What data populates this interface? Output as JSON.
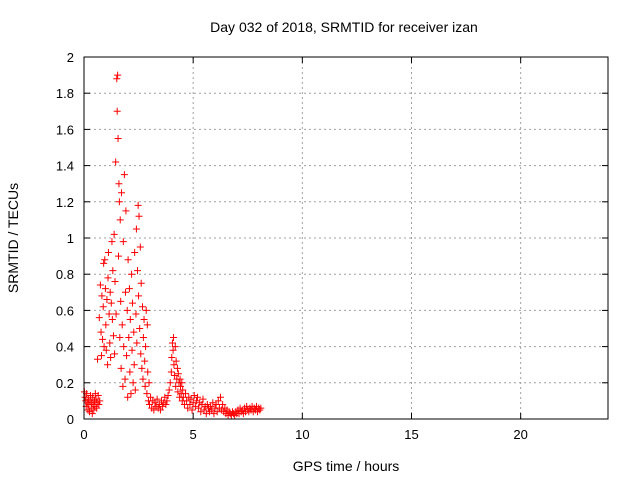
{
  "chart_data": {
    "type": "scatter",
    "title": "Day 032 of 2018, SRMTID for receiver izan",
    "xlabel": "GPS time / hours",
    "ylabel": "SRMTID / TECUs",
    "xlim": [
      0,
      24
    ],
    "ylim": [
      0,
      2
    ],
    "x_ticks": [
      "0",
      "5",
      "10",
      "15",
      "20"
    ],
    "y_ticks": [
      "0",
      "0.2",
      "0.4",
      "0.6",
      "0.8",
      "1",
      "1.2",
      "1.4",
      "1.6",
      "1.8",
      "2"
    ],
    "x_tick_values": [
      0,
      5,
      10,
      15,
      20
    ],
    "y_tick_values": [
      0,
      0.2,
      0.4,
      0.6,
      0.8,
      1.0,
      1.2,
      1.4,
      1.6,
      1.8,
      2.0
    ],
    "grid": true,
    "marker": "+",
    "color": "#ff0000",
    "series": [
      {
        "name": "SRMTID",
        "points": [
          [
            0.02,
            0.15
          ],
          [
            0.05,
            0.12
          ],
          [
            0.08,
            0.1
          ],
          [
            0.1,
            0.07
          ],
          [
            0.12,
            0.14
          ],
          [
            0.15,
            0.09
          ],
          [
            0.18,
            0.05
          ],
          [
            0.2,
            0.11
          ],
          [
            0.22,
            0.08
          ],
          [
            0.25,
            0.04
          ],
          [
            0.28,
            0.1
          ],
          [
            0.3,
            0.13
          ],
          [
            0.33,
            0.06
          ],
          [
            0.35,
            0.09
          ],
          [
            0.38,
            0.03
          ],
          [
            0.4,
            0.12
          ],
          [
            0.42,
            0.08
          ],
          [
            0.45,
            0.05
          ],
          [
            0.48,
            0.1
          ],
          [
            0.5,
            0.07
          ],
          [
            0.52,
            0.14
          ],
          [
            0.55,
            0.11
          ],
          [
            0.58,
            0.06
          ],
          [
            0.6,
            0.09
          ],
          [
            0.62,
            0.33
          ],
          [
            0.65,
            0.13
          ],
          [
            0.68,
            0.08
          ],
          [
            0.7,
            0.56
          ],
          [
            0.72,
            0.1
          ],
          [
            0.75,
            0.74
          ],
          [
            0.78,
            0.48
          ],
          [
            0.8,
            0.35
          ],
          [
            0.82,
            0.68
          ],
          [
            0.85,
            0.44
          ],
          [
            0.88,
            0.62
          ],
          [
            0.9,
            0.86
          ],
          [
            0.92,
            0.4
          ],
          [
            0.95,
            0.88
          ],
          [
            0.98,
            0.72
          ],
          [
            1.0,
            0.52
          ],
          [
            1.02,
            0.38
          ],
          [
            1.05,
            0.66
          ],
          [
            1.08,
            0.3
          ],
          [
            1.1,
            0.78
          ],
          [
            1.12,
            0.92
          ],
          [
            1.15,
            0.58
          ],
          [
            1.18,
            0.42
          ],
          [
            1.2,
            0.7
          ],
          [
            1.22,
            0.34
          ],
          [
            1.25,
            0.64
          ],
          [
            1.28,
            0.98
          ],
          [
            1.3,
            0.55
          ],
          [
            1.32,
            0.82
          ],
          [
            1.35,
            0.46
          ],
          [
            1.38,
            1.02
          ],
          [
            1.4,
            0.36
          ],
          [
            1.42,
            0.76
          ],
          [
            1.45,
            1.42
          ],
          [
            1.47,
            0.58
          ],
          [
            1.5,
            1.88
          ],
          [
            1.52,
            1.7
          ],
          [
            1.54,
            1.9
          ],
          [
            1.56,
            1.55
          ],
          [
            1.58,
            0.9
          ],
          [
            1.6,
            1.3
          ],
          [
            1.62,
            1.2
          ],
          [
            1.64,
            0.45
          ],
          [
            1.66,
            1.1
          ],
          [
            1.68,
            0.65
          ],
          [
            1.7,
            0.28
          ],
          [
            1.72,
            1.25
          ],
          [
            1.75,
            0.52
          ],
          [
            1.78,
            0.18
          ],
          [
            1.8,
            0.98
          ],
          [
            1.82,
            0.4
          ],
          [
            1.85,
            1.35
          ],
          [
            1.88,
            0.22
          ],
          [
            1.9,
            0.7
          ],
          [
            1.92,
            1.15
          ],
          [
            1.95,
            0.35
          ],
          [
            1.98,
            0.6
          ],
          [
            2.0,
            0.12
          ],
          [
            2.02,
            0.88
          ],
          [
            2.05,
            0.45
          ],
          [
            2.08,
            0.72
          ],
          [
            2.1,
            0.26
          ],
          [
            2.12,
            0.55
          ],
          [
            2.15,
            0.14
          ],
          [
            2.18,
            0.8
          ],
          [
            2.2,
            0.38
          ],
          [
            2.22,
            0.64
          ],
          [
            2.25,
            0.2
          ],
          [
            2.28,
            0.48
          ],
          [
            2.3,
            0.3
          ],
          [
            2.32,
            0.92
          ],
          [
            2.35,
            0.16
          ],
          [
            2.38,
            0.58
          ],
          [
            2.4,
            1.05
          ],
          [
            2.42,
            0.42
          ],
          [
            2.45,
            0.82
          ],
          [
            2.48,
            1.18
          ],
          [
            2.5,
            0.68
          ],
          [
            2.52,
            1.12
          ],
          [
            2.55,
            0.5
          ],
          [
            2.58,
            0.95
          ],
          [
            2.6,
            0.36
          ],
          [
            2.62,
            0.75
          ],
          [
            2.65,
            0.28
          ],
          [
            2.68,
            0.62
          ],
          [
            2.7,
            0.22
          ],
          [
            2.72,
            0.45
          ],
          [
            2.75,
            0.55
          ],
          [
            2.78,
            0.32
          ],
          [
            2.8,
            0.18
          ],
          [
            2.82,
            0.4
          ],
          [
            2.85,
            0.6
          ],
          [
            2.88,
            0.14
          ],
          [
            2.9,
            0.52
          ],
          [
            2.92,
            0.26
          ],
          [
            2.95,
            0.1
          ],
          [
            2.98,
            0.2
          ],
          [
            3.0,
            0.08
          ],
          [
            3.05,
            0.12
          ],
          [
            3.1,
            0.06
          ],
          [
            3.15,
            0.1
          ],
          [
            3.2,
            0.05
          ],
          [
            3.25,
            0.09
          ],
          [
            3.3,
            0.07
          ],
          [
            3.35,
            0.11
          ],
          [
            3.4,
            0.06
          ],
          [
            3.45,
            0.08
          ],
          [
            3.5,
            0.05
          ],
          [
            3.55,
            0.1
          ],
          [
            3.6,
            0.07
          ],
          [
            3.65,
            0.09
          ],
          [
            3.7,
            0.12
          ],
          [
            3.75,
            0.08
          ],
          [
            3.8,
            0.1
          ],
          [
            3.85,
            0.13
          ],
          [
            3.9,
            0.16
          ],
          [
            3.95,
            0.2
          ],
          [
            4.0,
            0.26
          ],
          [
            4.02,
            0.34
          ],
          [
            4.05,
            0.42
          ],
          [
            4.08,
            0.38
          ],
          [
            4.1,
            0.45
          ],
          [
            4.12,
            0.3
          ],
          [
            4.15,
            0.24
          ],
          [
            4.18,
            0.4
          ],
          [
            4.2,
            0.18
          ],
          [
            4.22,
            0.32
          ],
          [
            4.25,
            0.22
          ],
          [
            4.28,
            0.28
          ],
          [
            4.3,
            0.15
          ],
          [
            4.32,
            0.25
          ],
          [
            4.35,
            0.2
          ],
          [
            4.38,
            0.12
          ],
          [
            4.4,
            0.22
          ],
          [
            4.42,
            0.18
          ],
          [
            4.45,
            0.14
          ],
          [
            4.48,
            0.2
          ],
          [
            4.5,
            0.1
          ],
          [
            4.52,
            0.16
          ],
          [
            4.55,
            0.12
          ],
          [
            4.6,
            0.08
          ],
          [
            4.65,
            0.14
          ],
          [
            4.7,
            0.1
          ],
          [
            4.75,
            0.06
          ],
          [
            4.8,
            0.12
          ],
          [
            4.85,
            0.08
          ],
          [
            4.9,
            0.11
          ],
          [
            4.95,
            0.05
          ],
          [
            5.0,
            0.09
          ],
          [
            5.05,
            0.13
          ],
          [
            5.1,
            0.07
          ],
          [
            5.15,
            0.1
          ],
          [
            5.2,
            0.12
          ],
          [
            5.25,
            0.06
          ],
          [
            5.3,
            0.09
          ],
          [
            5.35,
            0.04
          ],
          [
            5.4,
            0.08
          ],
          [
            5.45,
            0.11
          ],
          [
            5.5,
            0.05
          ],
          [
            5.55,
            0.07
          ],
          [
            5.6,
            0.03
          ],
          [
            5.65,
            0.08
          ],
          [
            5.7,
            0.06
          ],
          [
            5.75,
            0.04
          ],
          [
            5.8,
            0.07
          ],
          [
            5.85,
            0.05
          ],
          [
            5.9,
            0.09
          ],
          [
            5.95,
            0.03
          ],
          [
            6.0,
            0.06
          ],
          [
            6.05,
            0.08
          ],
          [
            6.1,
            0.04
          ],
          [
            6.15,
            0.1
          ],
          [
            6.2,
            0.06
          ],
          [
            6.25,
            0.12
          ],
          [
            6.3,
            0.05
          ],
          [
            6.35,
            0.08
          ],
          [
            6.4,
            0.04
          ],
          [
            6.45,
            0.06
          ],
          [
            6.5,
            0.03
          ],
          [
            6.55,
            0.05
          ],
          [
            6.6,
            0.02
          ],
          [
            6.65,
            0.04
          ],
          [
            6.7,
            0.03
          ],
          [
            6.75,
            0.02
          ],
          [
            6.8,
            0.04
          ],
          [
            6.85,
            0.03
          ],
          [
            6.9,
            0.02
          ],
          [
            6.95,
            0.04
          ],
          [
            7.0,
            0.03
          ],
          [
            7.05,
            0.05
          ],
          [
            7.1,
            0.03
          ],
          [
            7.15,
            0.06
          ],
          [
            7.2,
            0.04
          ],
          [
            7.25,
            0.05
          ],
          [
            7.3,
            0.03
          ],
          [
            7.35,
            0.06
          ],
          [
            7.4,
            0.04
          ],
          [
            7.45,
            0.07
          ],
          [
            7.5,
            0.05
          ],
          [
            7.55,
            0.04
          ],
          [
            7.6,
            0.06
          ],
          [
            7.65,
            0.05
          ],
          [
            7.7,
            0.07
          ],
          [
            7.75,
            0.04
          ],
          [
            7.8,
            0.06
          ],
          [
            7.85,
            0.05
          ],
          [
            7.9,
            0.07
          ],
          [
            7.95,
            0.04
          ],
          [
            8.0,
            0.06
          ],
          [
            8.05,
            0.05
          ],
          [
            8.1,
            0.06
          ]
        ]
      }
    ]
  }
}
